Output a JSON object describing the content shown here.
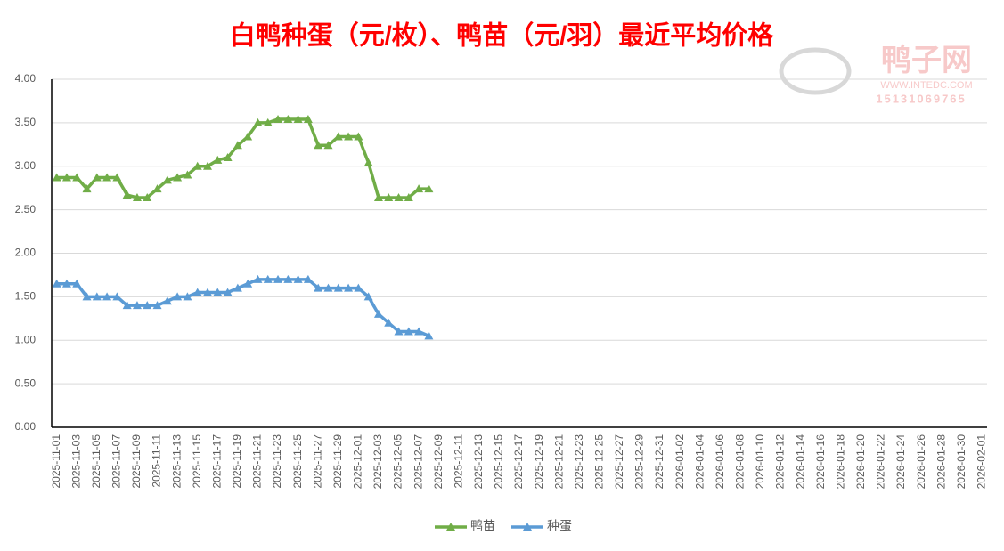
{
  "chart_data": {
    "type": "line",
    "title": "白鸭种蛋（元/枚）、鸭苗（元/羽）最近平均价格",
    "watermark": {
      "logo": "鸭子网",
      "site": "WWW.INTEDC.COM",
      "phone": "15131069765"
    },
    "categories": [
      "2025-11-01",
      null,
      "2025-11-03",
      null,
      "2025-11-05",
      null,
      "2025-11-07",
      null,
      "2025-11-09",
      null,
      "2025-11-11",
      null,
      "2025-11-13",
      null,
      "2025-11-15",
      null,
      "2025-11-17",
      null,
      "2025-11-19",
      null,
      "2025-11-21",
      null,
      "2025-11-23",
      null,
      "2025-11-25",
      null,
      "2025-11-27",
      null,
      "2025-11-29",
      null,
      "2025-12-01",
      null,
      "2025-12-03",
      null,
      "2025-12-05",
      null,
      "2025-12-07",
      null,
      "2025-12-09",
      null,
      "2025-12-11",
      null,
      "2025-12-13",
      null,
      "2025-12-15",
      null,
      "2025-12-17",
      null,
      "2025-12-19",
      null,
      "2025-12-21",
      null,
      "2025-12-23",
      null,
      "2025-12-25",
      null,
      "2025-12-27",
      null,
      "2025-12-29",
      null,
      "2025-12-31",
      null,
      "2026-01-02",
      null,
      "2026-01-04",
      null,
      "2026-01-06",
      null,
      "2026-01-08",
      null,
      "2026-01-10",
      null,
      "2026-01-12",
      null,
      "2026-01-14",
      null,
      "2026-01-16",
      null,
      "2026-01-18",
      null,
      "2026-01-20",
      null,
      "2026-01-22",
      null,
      "2026-01-24",
      null,
      "2026-01-26",
      null,
      "2026-01-28",
      null,
      "2026-01-30",
      null,
      "2026-02-01"
    ],
    "series": [
      {
        "name": "鸭苗",
        "color": "#70ad47",
        "values": [
          2.87,
          2.87,
          2.87,
          2.74,
          2.87,
          2.87,
          2.87,
          2.67,
          2.64,
          2.64,
          2.74,
          2.84,
          2.87,
          2.9,
          3.0,
          3.0,
          3.07,
          3.1,
          3.24,
          3.34,
          3.5,
          3.5,
          3.54,
          3.54,
          3.54,
          3.54,
          3.24,
          3.24,
          3.34,
          3.34,
          3.34,
          3.04,
          2.64,
          2.64,
          2.64,
          2.64,
          2.74,
          2.74,
          null,
          null,
          null,
          null,
          null,
          null,
          null,
          null,
          null,
          null,
          null,
          null,
          null,
          null,
          null,
          null,
          null,
          null,
          null,
          null,
          null,
          null,
          null,
          null,
          null,
          null,
          null,
          null,
          null,
          null,
          null,
          null,
          null,
          null,
          null,
          null,
          null,
          null,
          null,
          null,
          null,
          null,
          null,
          null,
          null,
          null,
          null,
          null,
          null,
          null,
          null,
          null,
          null,
          null,
          null
        ]
      },
      {
        "name": "种蛋",
        "color": "#5b9bd5",
        "values": [
          1.65,
          1.65,
          1.65,
          1.5,
          1.5,
          1.5,
          1.5,
          1.4,
          1.4,
          1.4,
          1.4,
          1.45,
          1.5,
          1.5,
          1.55,
          1.55,
          1.55,
          1.55,
          1.6,
          1.65,
          1.7,
          1.7,
          1.7,
          1.7,
          1.7,
          1.7,
          1.6,
          1.6,
          1.6,
          1.6,
          1.6,
          1.5,
          1.3,
          1.2,
          1.1,
          1.1,
          1.1,
          1.05,
          null,
          null,
          null,
          null,
          null,
          null,
          null,
          null,
          null,
          null,
          null,
          null,
          null,
          null,
          null,
          null,
          null,
          null,
          null,
          null,
          null,
          null,
          null,
          null,
          null,
          null,
          null,
          null,
          null,
          null,
          null,
          null,
          null,
          null,
          null,
          null,
          null,
          null,
          null,
          null,
          null,
          null,
          null,
          null,
          null,
          null,
          null,
          null,
          null,
          null,
          null,
          null,
          null,
          null,
          null
        ]
      }
    ],
    "ylim": [
      0,
      4
    ],
    "yticks": [
      {
        "value": 0,
        "label": "0.00"
      },
      {
        "value": 0.5,
        "label": "0.50"
      },
      {
        "value": 1,
        "label": "1.00"
      },
      {
        "value": 1.5,
        "label": "1.50"
      },
      {
        "value": 2,
        "label": "2.00"
      },
      {
        "value": 2.5,
        "label": "2.50"
      },
      {
        "value": 3,
        "label": "3.00"
      },
      {
        "value": 3.5,
        "label": "3.50"
      },
      {
        "value": 4,
        "label": "4.00"
      }
    ],
    "grid": true,
    "legend": "bottom"
  }
}
